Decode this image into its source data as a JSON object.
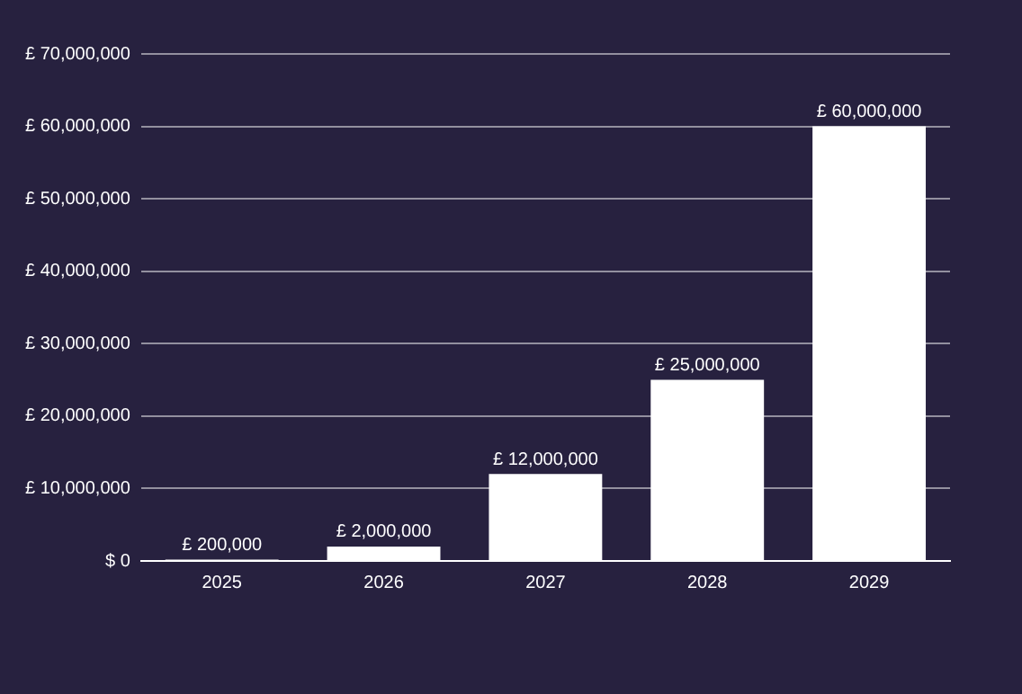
{
  "chart_data": {
    "type": "bar",
    "categories": [
      "2025",
      "2026",
      "2027",
      "2028",
      "2029"
    ],
    "values": [
      200000,
      2000000,
      12000000,
      25000000,
      60000000
    ],
    "color": "#ffffff",
    "value_labels": [
      "£ 200,000",
      "£ 2,000,000",
      "£ 12,000,000",
      "£ 25,000,000",
      "£ 60,000,000"
    ],
    "ylim": [
      0,
      70000000
    ],
    "yticks": [
      {
        "value": 0,
        "label": "$ 0"
      },
      {
        "value": 10000000,
        "label": "£ 10,000,000"
      },
      {
        "value": 20000000,
        "label": "£ 20,000,000"
      },
      {
        "value": 30000000,
        "label": "£ 30,000,000"
      },
      {
        "value": 40000000,
        "label": "£ 40,000,000"
      },
      {
        "value": 50000000,
        "label": "£ 50,000,000"
      },
      {
        "value": 60000000,
        "label": "£ 60,000,000"
      },
      {
        "value": 70000000,
        "label": "£ 70,000,000"
      }
    ],
    "grid": "y"
  }
}
